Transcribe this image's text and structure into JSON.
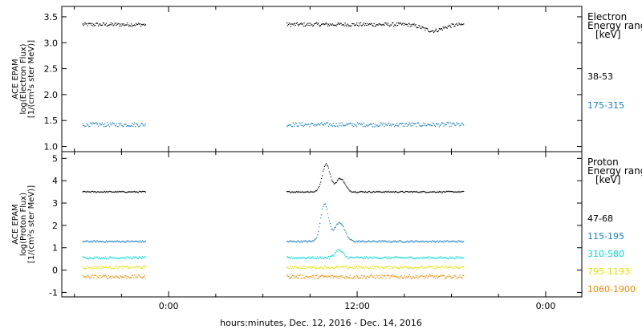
{
  "chart_data": [
    {
      "type": "scatter",
      "panel": "electron",
      "ylabel_lines": [
        "ACE EPAM",
        "log(Electron Flux)",
        "[1/(cm²s ster MeV)]"
      ],
      "ylim": [
        0.9,
        3.7
      ],
      "yticks": [
        1.0,
        1.5,
        2.0,
        2.5,
        3.0,
        3.5
      ],
      "ytick_labels": [
        "1.0",
        "1.5",
        "2.0",
        "2.5",
        "3.0",
        "3.5"
      ],
      "legend_title": [
        "Electron",
        "Energy range",
        "[keV]"
      ],
      "legend_placement": "right",
      "series": [
        {
          "name": "38-53",
          "color": "#000000",
          "level": 3.35,
          "noise": 0.035,
          "segments": [
            [
              -5.5,
              -1.5
            ],
            [
              7.5,
              18.8
            ]
          ],
          "bumps": [
            {
              "t": 16.8,
              "dy": -0.12,
              "w": 0.9
            }
          ]
        },
        {
          "name": "175-315",
          "color": "#1a7fc4",
          "level": 1.42,
          "noise": 0.04,
          "segments": [
            [
              -5.5,
              -1.5
            ],
            [
              7.5,
              18.8
            ]
          ],
          "bumps": []
        }
      ]
    },
    {
      "type": "scatter",
      "panel": "proton",
      "ylabel_lines": [
        "ACE EPAM",
        "log(Proton Flux)",
        "[1/(cm²s ster MeV)]"
      ],
      "ylim": [
        -1.2,
        5.3
      ],
      "yticks": [
        -1,
        0,
        1,
        2,
        3,
        4,
        5
      ],
      "ytick_labels": [
        "-1",
        "0",
        "1",
        "2",
        "3",
        "4",
        "5"
      ],
      "legend_title": [
        "Proton",
        "Energy range",
        "[keV]"
      ],
      "legend_placement": "right",
      "series": [
        {
          "name": "47-68",
          "color": "#000000",
          "level": 3.5,
          "noise": 0.03,
          "segments": [
            [
              -5.5,
              -1.5
            ],
            [
              7.5,
              18.8
            ]
          ],
          "bumps": [
            {
              "t": 10.0,
              "dy": 1.25,
              "w": 0.35
            },
            {
              "t": 10.9,
              "dy": 0.6,
              "w": 0.4
            }
          ]
        },
        {
          "name": "115-195",
          "color": "#1a7fc4",
          "level": 1.28,
          "noise": 0.04,
          "segments": [
            [
              -5.5,
              -1.5
            ],
            [
              7.5,
              18.8
            ]
          ],
          "bumps": [
            {
              "t": 9.9,
              "dy": 1.7,
              "w": 0.35
            },
            {
              "t": 10.85,
              "dy": 0.85,
              "w": 0.45
            }
          ]
        },
        {
          "name": "310-580",
          "color": "#00d8d8",
          "level": 0.55,
          "noise": 0.05,
          "segments": [
            [
              -5.5,
              -1.5
            ],
            [
              7.5,
              18.8
            ]
          ],
          "bumps": [
            {
              "t": 10.8,
              "dy": 0.35,
              "w": 0.35
            }
          ]
        },
        {
          "name": "795-1193",
          "color": "#e0e000",
          "level": 0.12,
          "noise": 0.06,
          "segments": [
            [
              -5.5,
              -1.5
            ],
            [
              7.5,
              18.8
            ]
          ],
          "bumps": []
        },
        {
          "name": "1060-1900",
          "color": "#f08c00",
          "level": -0.3,
          "noise": 0.08,
          "segments": [
            [
              -5.5,
              -1.5
            ],
            [
              7.5,
              18.8
            ]
          ],
          "bumps": []
        }
      ]
    }
  ],
  "xaxis": {
    "xlim": [
      -6.8,
      26.3
    ],
    "ticks": [
      0,
      12,
      24
    ],
    "tick_labels": [
      "0:00",
      "12:00",
      "0:00"
    ],
    "minor_step": 3,
    "label": "hours:minutes, Dec. 12, 2016 - Dec. 14, 2016"
  }
}
